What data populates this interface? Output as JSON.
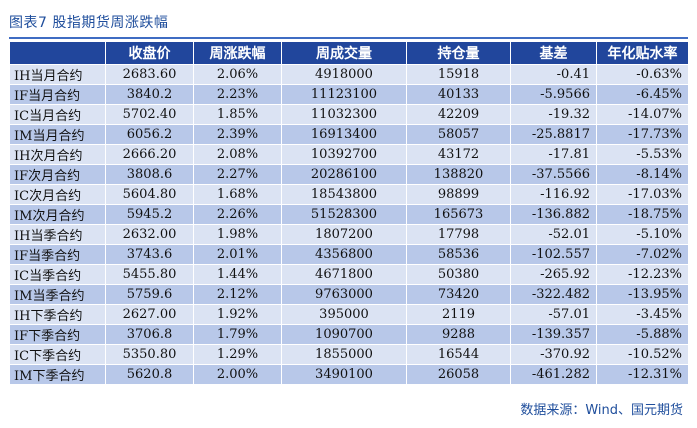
{
  "title": "图表7 股指期货周涨跌幅",
  "source": "数据来源：Wind、国元期货",
  "columns": [
    "",
    "收盘价",
    "周涨跌幅",
    "周成交量",
    "持仓量",
    "基差",
    "年化贴水率"
  ],
  "rows": [
    [
      "IH当月合约",
      "2683.60",
      "2.06%",
      "4918000",
      "15918",
      "-0.41",
      "-0.63%"
    ],
    [
      "IF当月合约",
      "3840.2",
      "2.23%",
      "11123100",
      "40133",
      "-5.9566",
      "-6.45%"
    ],
    [
      "IC当月合约",
      "5702.40",
      "1.85%",
      "11032300",
      "42209",
      "-19.32",
      "-14.07%"
    ],
    [
      "IM当月合约",
      "6056.2",
      "2.39%",
      "16913400",
      "58057",
      "-25.8817",
      "-17.73%"
    ],
    [
      "IH次月合约",
      "2666.20",
      "2.08%",
      "10392700",
      "43172",
      "-17.81",
      "-5.53%"
    ],
    [
      "IF次月合约",
      "3808.6",
      "2.27%",
      "20286100",
      "138820",
      "-37.5566",
      "-8.14%"
    ],
    [
      "IC次月合约",
      "5604.80",
      "1.68%",
      "18543800",
      "98899",
      "-116.92",
      "-17.03%"
    ],
    [
      "IM次月合约",
      "5945.2",
      "2.26%",
      "51528300",
      "165673",
      "-136.882",
      "-18.75%"
    ],
    [
      "IH当季合约",
      "2632.00",
      "1.98%",
      "1807200",
      "17798",
      "-52.01",
      "-5.10%"
    ],
    [
      "IF当季合约",
      "3743.6",
      "2.01%",
      "4356800",
      "58536",
      "-102.557",
      "-7.02%"
    ],
    [
      "IC当季合约",
      "5455.80",
      "1.44%",
      "4671800",
      "50380",
      "-265.92",
      "-12.23%"
    ],
    [
      "IM当季合约",
      "5759.6",
      "2.12%",
      "9763000",
      "73420",
      "-322.482",
      "-13.95%"
    ],
    [
      "IH下季合约",
      "2627.00",
      "1.92%",
      "395000",
      "2119",
      "-57.01",
      "-3.45%"
    ],
    [
      "IF下季合约",
      "3706.8",
      "1.79%",
      "1090700",
      "9288",
      "-139.357",
      "-5.88%"
    ],
    [
      "IC下季合约",
      "5350.80",
      "1.29%",
      "1855000",
      "16544",
      "-370.92",
      "-10.52%"
    ],
    [
      "IM下季合约",
      "5620.8",
      "2.00%",
      "3490100",
      "26058",
      "-461.282",
      "-12.31%"
    ]
  ]
}
